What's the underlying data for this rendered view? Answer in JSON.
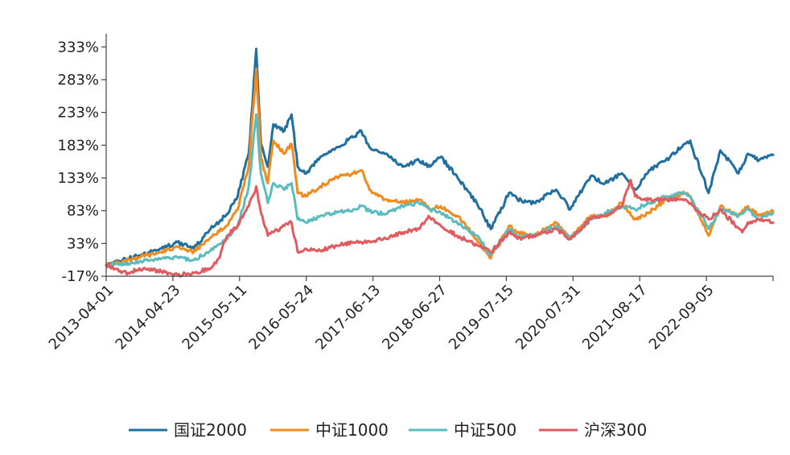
{
  "chart_data": {
    "type": "line",
    "title": "",
    "xlabel": "",
    "ylabel": "",
    "ylim": [
      -17,
      353
    ],
    "yticks": [
      -17,
      33,
      83,
      133,
      183,
      233,
      283,
      333
    ],
    "ytick_labels": [
      "-17%",
      "33%",
      "83%",
      "133%",
      "183%",
      "233%",
      "283%",
      "333%"
    ],
    "x_range": [
      "2013-03-01",
      "2023-04-20"
    ],
    "xtick_labels": [
      "2013-04-01",
      "2014-04-23",
      "2015-05-11",
      "2016-05-24",
      "2017-06-13",
      "2018-06-27",
      "2019-07-15",
      "2020-07-31",
      "2021-08-17",
      "2022-09-05"
    ],
    "grid": false,
    "legend_position": "bottom",
    "series": [
      {
        "name": "国证2000",
        "color": "#1f6f9f",
        "x": [
          "2013-03-01",
          "2013-06-01",
          "2013-09-01",
          "2014-01-01",
          "2014-04-01",
          "2014-07-01",
          "2014-10-01",
          "2015-01-01",
          "2015-03-01",
          "2015-05-01",
          "2015-06-12",
          "2015-07-08",
          "2015-08-15",
          "2015-09-15",
          "2015-11-15",
          "2015-12-25",
          "2016-01-28",
          "2016-03-15",
          "2016-06-01",
          "2016-09-01",
          "2016-12-01",
          "2017-01-15",
          "2017-03-01",
          "2017-06-01",
          "2017-09-01",
          "2017-12-01",
          "2018-02-01",
          "2018-04-01",
          "2018-07-01",
          "2018-10-18",
          "2019-01-04",
          "2019-04-15",
          "2019-06-01",
          "2019-09-01",
          "2020-01-01",
          "2020-03-20",
          "2020-07-10",
          "2020-09-30",
          "2021-01-01",
          "2021-03-15",
          "2021-06-01",
          "2021-09-01",
          "2021-12-15",
          "2022-01-15",
          "2022-04-27",
          "2022-07-01",
          "2022-10-10",
          "2022-12-01",
          "2023-02-01",
          "2023-04-20"
        ],
        "y": [
          0,
          8,
          15,
          25,
          35,
          25,
          55,
          78,
          105,
          170,
          330,
          185,
          150,
          215,
          205,
          230,
          150,
          140,
          165,
          180,
          195,
          205,
          180,
          170,
          150,
          160,
          150,
          165,
          135,
          95,
          55,
          110,
          100,
          95,
          115,
          85,
          135,
          125,
          140,
          115,
          145,
          160,
          185,
          190,
          110,
          175,
          140,
          170,
          160,
          168
        ]
      },
      {
        "name": "中证1000",
        "color": "#f28a1e",
        "x": [
          "2013-03-01",
          "2013-06-01",
          "2013-09-01",
          "2014-01-01",
          "2014-04-01",
          "2014-07-01",
          "2014-10-01",
          "2015-01-01",
          "2015-03-01",
          "2015-05-01",
          "2015-06-12",
          "2015-07-08",
          "2015-08-15",
          "2015-09-15",
          "2015-11-15",
          "2015-12-25",
          "2016-01-28",
          "2016-03-15",
          "2016-06-01",
          "2016-09-01",
          "2016-12-01",
          "2017-01-15",
          "2017-03-01",
          "2017-06-01",
          "2017-09-01",
          "2017-12-01",
          "2018-02-01",
          "2018-04-01",
          "2018-07-01",
          "2018-10-18",
          "2019-01-04",
          "2019-04-15",
          "2019-06-01",
          "2019-09-01",
          "2020-01-01",
          "2020-03-20",
          "2020-07-10",
          "2020-09-30",
          "2021-01-01",
          "2021-03-15",
          "2021-06-01",
          "2021-09-01",
          "2021-12-15",
          "2022-01-15",
          "2022-04-27",
          "2022-07-01",
          "2022-10-10",
          "2022-12-01",
          "2023-02-01",
          "2023-04-20"
        ],
        "y": [
          0,
          6,
          12,
          20,
          28,
          20,
          42,
          60,
          85,
          150,
          300,
          165,
          125,
          190,
          170,
          185,
          110,
          105,
          120,
          135,
          140,
          145,
          115,
          100,
          95,
          100,
          85,
          90,
          75,
          40,
          10,
          60,
          50,
          45,
          65,
          40,
          75,
          75,
          95,
          70,
          80,
          100,
          110,
          105,
          45,
          90,
          75,
          90,
          75,
          82
        ]
      },
      {
        "name": "中证500",
        "color": "#5bbcbf",
        "x": [
          "2013-03-01",
          "2013-06-01",
          "2013-09-01",
          "2014-01-01",
          "2014-04-01",
          "2014-07-01",
          "2014-10-01",
          "2015-01-01",
          "2015-03-01",
          "2015-05-01",
          "2015-06-12",
          "2015-07-08",
          "2015-08-15",
          "2015-09-15",
          "2015-11-15",
          "2015-12-25",
          "2016-01-28",
          "2016-03-15",
          "2016-06-01",
          "2016-09-01",
          "2016-12-01",
          "2017-01-15",
          "2017-03-01",
          "2017-06-01",
          "2017-09-01",
          "2017-12-01",
          "2018-02-01",
          "2018-04-01",
          "2018-07-01",
          "2018-10-18",
          "2019-01-04",
          "2019-04-15",
          "2019-06-01",
          "2019-09-01",
          "2020-01-01",
          "2020-03-20",
          "2020-07-10",
          "2020-09-30",
          "2021-01-01",
          "2021-03-15",
          "2021-06-01",
          "2021-09-01",
          "2021-12-15",
          "2022-01-15",
          "2022-04-27",
          "2022-07-01",
          "2022-10-10",
          "2022-12-01",
          "2023-02-01",
          "2023-04-20"
        ],
        "y": [
          0,
          2,
          5,
          10,
          12,
          8,
          22,
          40,
          60,
          120,
          230,
          140,
          95,
          125,
          115,
          125,
          70,
          65,
          75,
          80,
          85,
          90,
          82,
          78,
          90,
          95,
          85,
          80,
          65,
          45,
          15,
          55,
          45,
          45,
          60,
          40,
          70,
          80,
          90,
          85,
          95,
          105,
          110,
          105,
          55,
          85,
          75,
          85,
          70,
          80
        ]
      },
      {
        "name": "沪深300",
        "color": "#e05a5e",
        "x": [
          "2013-03-01",
          "2013-06-01",
          "2013-07-01",
          "2013-09-01",
          "2014-01-01",
          "2014-04-01",
          "2014-07-01",
          "2014-10-01",
          "2014-11-15",
          "2015-01-01",
          "2015-03-01",
          "2015-05-01",
          "2015-06-12",
          "2015-07-08",
          "2015-08-15",
          "2015-09-15",
          "2015-11-15",
          "2015-12-25",
          "2016-01-28",
          "2016-03-15",
          "2016-06-01",
          "2016-09-01",
          "2016-12-01",
          "2017-01-15",
          "2017-06-01",
          "2017-09-01",
          "2017-12-01",
          "2018-01-24",
          "2018-04-01",
          "2018-07-01",
          "2018-10-18",
          "2019-01-04",
          "2019-04-15",
          "2019-06-01",
          "2019-09-01",
          "2020-01-01",
          "2020-03-20",
          "2020-07-10",
          "2020-09-30",
          "2021-01-01",
          "2021-02-18",
          "2021-03-15",
          "2021-06-01",
          "2021-09-01",
          "2021-12-15",
          "2022-04-27",
          "2022-07-01",
          "2022-10-31",
          "2022-12-01",
          "2023-02-01",
          "2023-04-20"
        ],
        "y": [
          0,
          -10,
          -12,
          -5,
          -10,
          -15,
          -12,
          -5,
          10,
          45,
          60,
          90,
          120,
          80,
          45,
          50,
          60,
          65,
          20,
          25,
          22,
          30,
          35,
          35,
          40,
          50,
          55,
          75,
          60,
          45,
          30,
          20,
          50,
          40,
          45,
          55,
          40,
          70,
          75,
          90,
          130,
          105,
          100,
          100,
          100,
          70,
          85,
          50,
          65,
          70,
          65
        ]
      }
    ],
    "legend": [
      "国证2000",
      "中证1000",
      "中证500",
      "沪深300"
    ]
  }
}
